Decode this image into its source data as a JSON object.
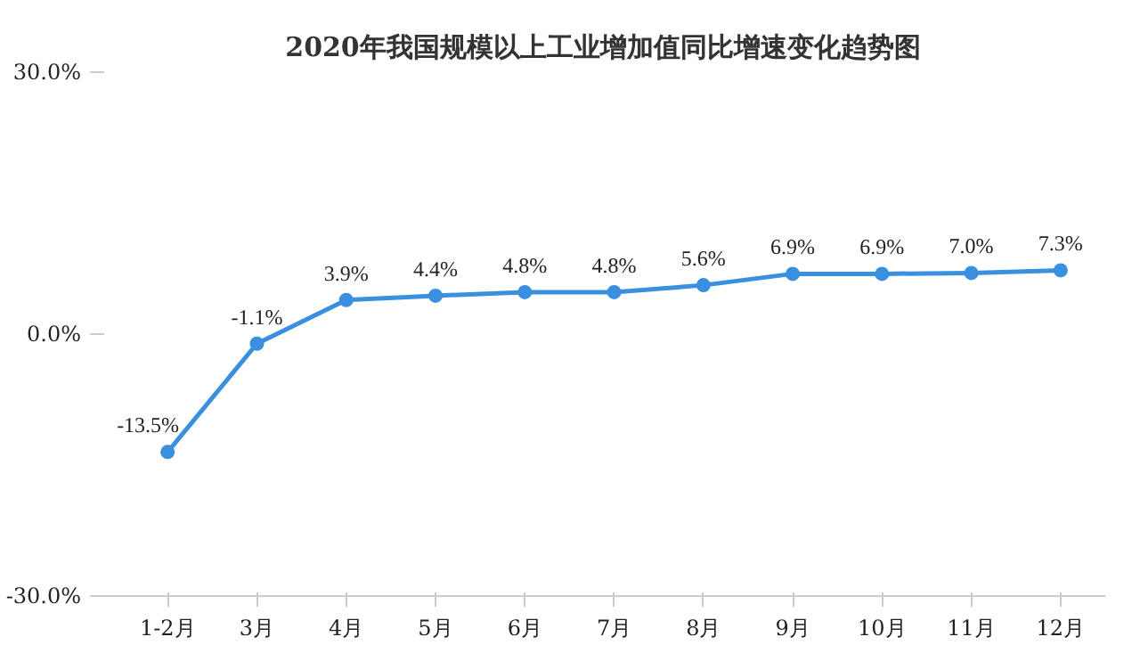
{
  "chart_data": {
    "type": "line",
    "title": "2020年我国规模以上工业增加值同比增速变化趋势图",
    "categories": [
      "1-2月",
      "3月",
      "4月",
      "5月",
      "6月",
      "7月",
      "8月",
      "9月",
      "10月",
      "11月",
      "12月"
    ],
    "series": [
      {
        "color": "#3a8fdf",
        "values": [
          -13.5,
          -1.1,
          3.9,
          4.4,
          4.8,
          4.8,
          5.6,
          6.9,
          6.9,
          7.0,
          7.3
        ],
        "value_labels": [
          "-13.5%",
          "-1.1%",
          "3.9%",
          "4.4%",
          "4.8%",
          "4.8%",
          "5.6%",
          "6.9%",
          "6.9%",
          "7.0%",
          "7.3%"
        ]
      }
    ],
    "ylim": [
      -30,
      30
    ],
    "yticks": [
      {
        "value": -30,
        "label": "-30.0%"
      },
      {
        "value": 0,
        "label": "0.0%"
      },
      {
        "value": 30,
        "label": "30.0%"
      }
    ],
    "grid": false,
    "marker": "circle",
    "line_style": "solid"
  }
}
